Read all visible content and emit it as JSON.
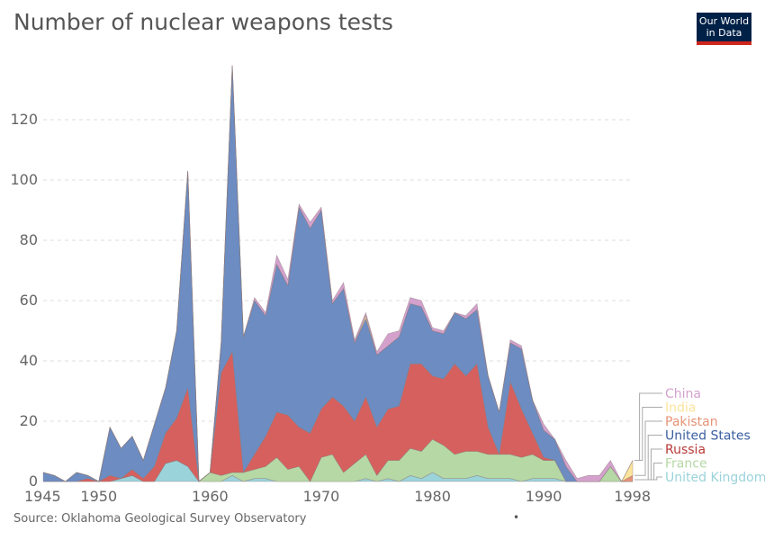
{
  "title": "Number of nuclear weapons tests",
  "logo": {
    "line1": "Our World",
    "line2": "in Data",
    "bg": "#002147",
    "accent": "#ce261e"
  },
  "source": "Source: Oklahoma Geological Survey Observatory",
  "chart_data": {
    "type": "area",
    "stacked": true,
    "title": "Number of nuclear weapons tests",
    "xlabel": "",
    "ylabel": "",
    "xlim": [
      1945,
      1998
    ],
    "ylim": [
      0,
      140
    ],
    "x_ticks": [
      1945,
      1950,
      1960,
      1970,
      1980,
      1990,
      1998
    ],
    "y_ticks": [
      0,
      20,
      40,
      60,
      80,
      100,
      120
    ],
    "grid": "horizontal-dashed",
    "legend": "right",
    "x": [
      1945,
      1946,
      1947,
      1948,
      1949,
      1950,
      1951,
      1952,
      1953,
      1954,
      1955,
      1956,
      1957,
      1958,
      1959,
      1960,
      1961,
      1962,
      1963,
      1964,
      1965,
      1966,
      1967,
      1968,
      1969,
      1970,
      1971,
      1972,
      1973,
      1974,
      1975,
      1976,
      1977,
      1978,
      1979,
      1980,
      1981,
      1982,
      1983,
      1984,
      1985,
      1986,
      1987,
      1988,
      1989,
      1990,
      1991,
      1992,
      1993,
      1994,
      1995,
      1996,
      1997,
      1998
    ],
    "series": [
      {
        "name": "United Kingdom",
        "color": "#9ad3da",
        "values": [
          0,
          0,
          0,
          0,
          0,
          0,
          0,
          1,
          2,
          0,
          0,
          6,
          7,
          5,
          0,
          0,
          0,
          2,
          0,
          1,
          1,
          0,
          0,
          0,
          0,
          0,
          0,
          0,
          0,
          1,
          0,
          1,
          0,
          2,
          1,
          3,
          1,
          1,
          1,
          2,
          1,
          1,
          1,
          0,
          1,
          1,
          1,
          0,
          0,
          0,
          0,
          0,
          0,
          0
        ]
      },
      {
        "name": "France",
        "color": "#b5d8a5",
        "values": [
          0,
          0,
          0,
          0,
          0,
          0,
          0,
          0,
          0,
          0,
          0,
          0,
          0,
          0,
          0,
          3,
          2,
          1,
          3,
          3,
          4,
          8,
          4,
          5,
          0,
          8,
          9,
          3,
          6,
          8,
          2,
          6,
          7,
          9,
          9,
          11,
          11,
          8,
          9,
          8,
          8,
          8,
          8,
          8,
          8,
          6,
          6,
          0,
          0,
          0,
          0,
          5,
          0,
          0
        ]
      },
      {
        "name": "Russia",
        "color": "#d6605e",
        "values": [
          0,
          0,
          0,
          0,
          1,
          0,
          2,
          0,
          2,
          1,
          5,
          10,
          14,
          26,
          0,
          0,
          34,
          40,
          0,
          5,
          10,
          15,
          18,
          13,
          16,
          16,
          19,
          22,
          14,
          19,
          16,
          17,
          18,
          28,
          29,
          21,
          22,
          30,
          25,
          29,
          9,
          0,
          24,
          16,
          7,
          1,
          0,
          0,
          0,
          0,
          0,
          0,
          0,
          0
        ]
      },
      {
        "name": "United States",
        "color": "#6c8cc2",
        "values": [
          3,
          2,
          0,
          3,
          1,
          0,
          16,
          10,
          11,
          6,
          14,
          15,
          29,
          72,
          0,
          0,
          10,
          95,
          45,
          51,
          40,
          49,
          43,
          73,
          68,
          66,
          31,
          39,
          26,
          26,
          24,
          21,
          23,
          20,
          19,
          15,
          15,
          17,
          19,
          18,
          17,
          14,
          13,
          20,
          11,
          9,
          7,
          5,
          0,
          0,
          0,
          0,
          0,
          0
        ]
      },
      {
        "name": "Pakistan",
        "color": "#e79377",
        "values": [
          0,
          0,
          0,
          0,
          0,
          0,
          0,
          0,
          0,
          0,
          0,
          0,
          0,
          0,
          0,
          0,
          0,
          0,
          0,
          0,
          0,
          0,
          0,
          0,
          0,
          0,
          0,
          0,
          0,
          0,
          0,
          0,
          0,
          0,
          0,
          0,
          0,
          0,
          0,
          0,
          0,
          0,
          0,
          0,
          0,
          0,
          0,
          0,
          0,
          0,
          0,
          0,
          0,
          2
        ]
      },
      {
        "name": "India",
        "color": "#fbe49b",
        "values": [
          0,
          0,
          0,
          0,
          0,
          0,
          0,
          0,
          0,
          0,
          0,
          0,
          0,
          0,
          0,
          0,
          0,
          0,
          0,
          0,
          0,
          0,
          0,
          0,
          0,
          0,
          0,
          0,
          0,
          1,
          0,
          0,
          0,
          0,
          0,
          0,
          0,
          0,
          0,
          0,
          0,
          0,
          0,
          0,
          0,
          0,
          0,
          0,
          0,
          0,
          0,
          0,
          0,
          5
        ]
      },
      {
        "name": "China",
        "color": "#d4a1cd",
        "values": [
          0,
          0,
          0,
          0,
          0,
          0,
          0,
          0,
          0,
          0,
          0,
          0,
          0,
          0,
          0,
          0,
          0,
          0,
          0,
          1,
          1,
          3,
          2,
          1,
          2,
          1,
          1,
          2,
          1,
          1,
          1,
          4,
          2,
          2,
          2,
          1,
          1,
          0,
          1,
          2,
          0,
          0,
          1,
          1,
          0,
          2,
          0,
          2,
          1,
          2,
          2,
          2,
          0,
          0
        ]
      }
    ]
  }
}
